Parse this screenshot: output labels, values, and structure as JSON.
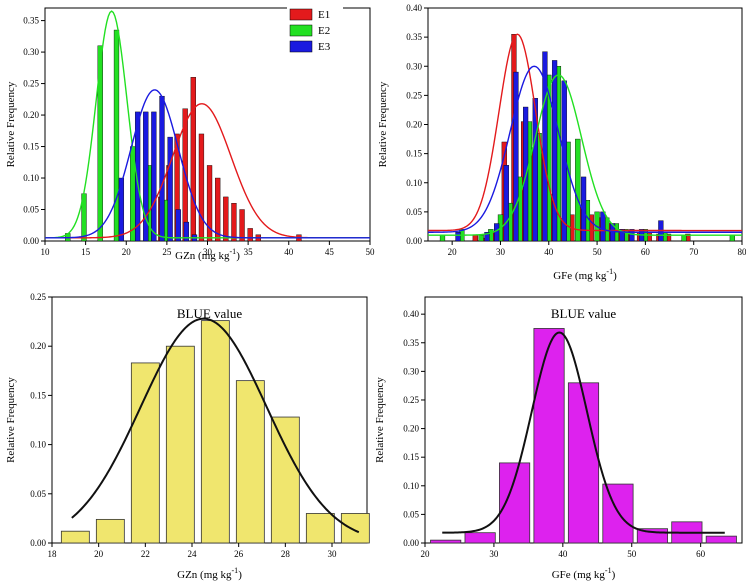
{
  "chart_data": [
    {
      "type": "bar",
      "title": "",
      "xlabel": "GZn (mg kg",
      "xlabel_sup": "-1",
      "ylabel": "Relative Frequency",
      "xlim": [
        10,
        50
      ],
      "ylim": [
        0,
        0.37
      ],
      "xticks": [
        10,
        15,
        20,
        25,
        30,
        35,
        40,
        45,
        50
      ],
      "yticks": [
        0.0,
        0.05,
        0.1,
        0.15,
        0.2,
        0.25,
        0.3,
        0.35
      ],
      "ytick_labels": [
        "0.00",
        "0.05",
        "0.10",
        "0.15",
        "0.20",
        "0.25",
        "0.30",
        "0.35"
      ],
      "bar_width": 0.6,
      "legend": {
        "position": "top-right",
        "labels": [
          "E1",
          "E2",
          "E3"
        ]
      },
      "series": [
        {
          "name": "E1",
          "color": "#e31a1c",
          "x": [
            24.5,
            25.5,
            26.5,
            27.5,
            28.5,
            29.5,
            30.5,
            31.5,
            32.5,
            33.5,
            34.5,
            35.5,
            36.5,
            41.5
          ],
          "values": [
            0.07,
            0.12,
            0.17,
            0.21,
            0.26,
            0.17,
            0.12,
            0.1,
            0.07,
            0.06,
            0.05,
            0.02,
            0.01,
            0.01
          ],
          "fit": {
            "mean": 29.3,
            "sd": 3.6,
            "peak": 0.218,
            "base": 0.005
          }
        },
        {
          "name": "E2",
          "color": "#22e022",
          "x": [
            12.8,
            14.8,
            16.8,
            18.8,
            20.8,
            22.8,
            24.8
          ],
          "values": [
            0.012,
            0.075,
            0.31,
            0.335,
            0.15,
            0.12,
            0.065
          ],
          "fit": {
            "mean": 18.2,
            "sd": 1.9,
            "peak": 0.365,
            "base": 0.005
          }
        },
        {
          "name": "E3",
          "color": "#1a1ae0",
          "x": [
            19.4,
            21.4,
            22.4,
            23.4,
            24.4,
            25.4,
            26.4,
            27.4,
            28.4
          ],
          "values": [
            0.1,
            0.205,
            0.205,
            0.205,
            0.23,
            0.165,
            0.05,
            0.03,
            0.01
          ],
          "fit": {
            "mean": 23.5,
            "sd": 2.9,
            "peak": 0.24,
            "base": 0.005
          }
        }
      ]
    },
    {
      "type": "bar",
      "title": "",
      "xlabel": "GFe  (mg kg",
      "xlabel_sup": "-1",
      "ylabel": "Relative Frequency",
      "xlim": [
        15,
        80
      ],
      "ylim": [
        0,
        0.4
      ],
      "xticks": [
        20,
        30,
        40,
        50,
        60,
        70,
        80
      ],
      "yticks": [
        0.0,
        0.05,
        0.1,
        0.15,
        0.2,
        0.25,
        0.3,
        0.35,
        0.4
      ],
      "ytick_labels": [
        "0.00",
        "0.05",
        "0.10",
        "0.15",
        "0.20",
        "0.25",
        "0.30",
        "0.35",
        "0.40"
      ],
      "bar_width": 1.0,
      "series": [
        {
          "name": "E1",
          "color": "#e31a1c",
          "x": [
            25,
            27,
            29,
            31,
            33,
            35,
            37,
            39,
            41,
            43,
            45,
            47,
            49,
            51,
            53,
            55,
            57,
            59,
            61,
            63,
            65,
            69
          ],
          "values": [
            0.01,
            0.005,
            0.015,
            0.17,
            0.355,
            0.205,
            0.16,
            0.15,
            0.08,
            0.035,
            0.045,
            0.06,
            0.045,
            0.04,
            0.03,
            0.02,
            0.018,
            0.015,
            0.015,
            0.012,
            0.012,
            0.012
          ],
          "fit": {
            "mean": 33.5,
            "sd": 3.8,
            "peak": 0.355,
            "base": 0.018
          }
        },
        {
          "name": "E2",
          "color": "#22e022",
          "x": [
            18,
            22,
            26,
            28,
            30,
            32,
            34,
            36,
            38,
            40,
            42,
            44,
            46,
            48,
            50,
            52,
            54,
            56,
            60,
            64,
            68,
            78
          ],
          "values": [
            0.01,
            0.02,
            0.01,
            0.02,
            0.045,
            0.065,
            0.11,
            0.205,
            0.185,
            0.285,
            0.3,
            0.17,
            0.175,
            0.07,
            0.05,
            0.04,
            0.03,
            0.02,
            0.02,
            0.015,
            0.01,
            0.01
          ],
          "fit": {
            "mean": 42,
            "sd": 4.8,
            "peak": 0.285,
            "base": 0.01
          }
        },
        {
          "name": "E3",
          "color": "#1a1ae0",
          "x": [
            21,
            27,
            29,
            31,
            33,
            35,
            37,
            39,
            41,
            43,
            47,
            51,
            53,
            55,
            57,
            59,
            63
          ],
          "values": [
            0.015,
            0.015,
            0.03,
            0.13,
            0.29,
            0.23,
            0.245,
            0.325,
            0.31,
            0.275,
            0.11,
            0.05,
            0.03,
            0.02,
            0.02,
            0.02,
            0.035
          ],
          "fit": {
            "mean": 37,
            "sd": 5.0,
            "peak": 0.3,
            "base": 0.015
          }
        }
      ]
    },
    {
      "type": "bar",
      "title": "BLUE value",
      "xlabel": "GZn (mg kg",
      "xlabel_sup": "-1",
      "ylabel": "Relative Frequency",
      "xlim": [
        18,
        31.5
      ],
      "ylim": [
        0,
        0.25
      ],
      "xticks": [
        18,
        20,
        22,
        24,
        26,
        28,
        30
      ],
      "yticks": [
        0.0,
        0.05,
        0.1,
        0.15,
        0.2,
        0.25
      ],
      "ytick_labels": [
        "0.00",
        "0.05",
        "0.10",
        "0.15",
        "0.20",
        "0.25"
      ],
      "bar_width": 1.2,
      "color": "#f0e66e",
      "categories": [
        "19",
        "20.5",
        "22",
        "23.5",
        "25",
        "26.5",
        "28",
        "29.5",
        "31"
      ],
      "x": [
        19,
        20.5,
        22,
        23.5,
        25,
        26.5,
        28,
        29.5,
        31
      ],
      "values": [
        0.012,
        0.024,
        0.183,
        0.2,
        0.226,
        0.165,
        0.128,
        0.03,
        0.03
      ],
      "fit": {
        "mean": 24.5,
        "sd": 2.7,
        "peak": 0.228,
        "base": 0.0
      }
    },
    {
      "type": "bar",
      "title": "BLUE value",
      "xlabel": "GFe (mg kg",
      "xlabel_sup": "-1",
      "ylabel": "Relative Frequency",
      "xlim": [
        20,
        66
      ],
      "ylim": [
        0,
        0.43
      ],
      "xticks": [
        20,
        30,
        40,
        50,
        60
      ],
      "yticks": [
        0.0,
        0.05,
        0.1,
        0.15,
        0.2,
        0.25,
        0.3,
        0.35,
        0.4
      ],
      "ytick_labels": [
        "0.00",
        "0.05",
        "0.10",
        "0.15",
        "0.20",
        "0.25",
        "0.30",
        "0.35",
        "0.40"
      ],
      "bar_width": 4.4,
      "color": "#dd22ee",
      "categories": [
        "23",
        "28",
        "33",
        "38",
        "43",
        "48",
        "53",
        "58",
        "63"
      ],
      "x": [
        23,
        28,
        33,
        38,
        43,
        48,
        53,
        58,
        63
      ],
      "values": [
        0.005,
        0.018,
        0.14,
        0.375,
        0.28,
        0.103,
        0.025,
        0.037,
        0.012
      ],
      "fit": {
        "mean": 39.5,
        "sd": 4.0,
        "peak": 0.368,
        "base": 0.018
      }
    }
  ]
}
